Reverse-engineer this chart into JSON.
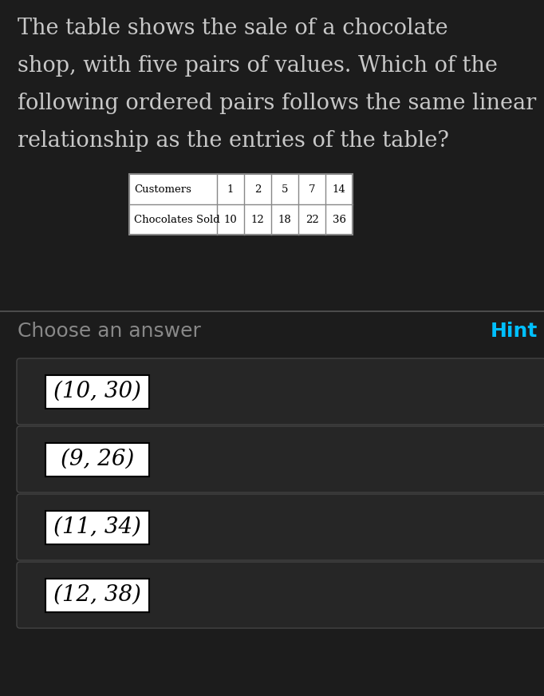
{
  "bg_dark": "#1c1c1c",
  "question_text_lines": [
    "The table shows the sale of a chocolate",
    "shop, with five pairs of values. Which of the",
    "following ordered pairs follows the same linear",
    "relationship as the entries of the table?"
  ],
  "question_text_color": "#c8c8c8",
  "question_fontsize": 19.5,
  "table_row1_label": "Customers",
  "table_row2_label": "Chocolates Sold",
  "table_col_values_row1": [
    "1",
    "2",
    "5",
    "7",
    "14"
  ],
  "table_col_values_row2": [
    "10",
    "12",
    "18",
    "22",
    "36"
  ],
  "divider_color": "#555555",
  "choose_label": "Choose an answer",
  "choose_color": "#888888",
  "hint_label": "Hint",
  "hint_color": "#00bfff",
  "answer_fontsize": 20,
  "answer_bg": "#262626",
  "answer_border": "#444444",
  "answers": [
    "(10, 30)",
    "(9, 26)",
    "(11, 34)",
    "(12, 38)"
  ]
}
